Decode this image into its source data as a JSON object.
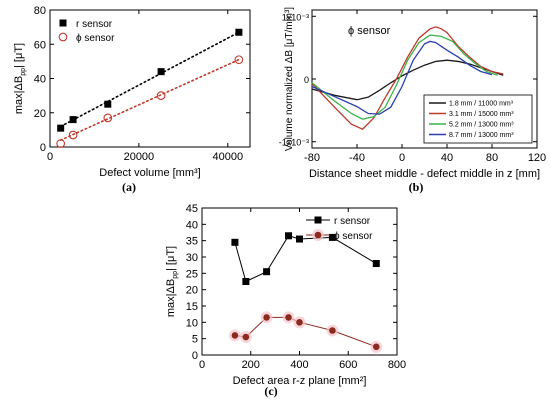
{
  "chart_data": [
    {
      "id": "a",
      "type": "scatter",
      "caption": "(a)",
      "xlabel": "Defect volume [mm³]",
      "ylabel_parts": [
        "max|ΔB",
        "pp",
        "| [μT]"
      ],
      "xlim": [
        0,
        45000
      ],
      "ylim": [
        0,
        80
      ],
      "xticks": [
        {
          "v": 0,
          "t": "0"
        },
        {
          "v": 20000,
          "t": "20000"
        },
        {
          "v": 40000,
          "t": "40000"
        }
      ],
      "yticks": [
        {
          "v": 0,
          "t": "0"
        },
        {
          "v": 20,
          "t": "20"
        },
        {
          "v": 40,
          "t": "40"
        },
        {
          "v": 60,
          "t": "60"
        },
        {
          "v": 80,
          "t": "80"
        }
      ],
      "legend_position": "top-left",
      "series": [
        {
          "name": "r sensor",
          "color": "#000000",
          "marker": "square-filled",
          "x": [
            2400,
            5200,
            13000,
            25000,
            42500
          ],
          "y": [
            11,
            16,
            25,
            44,
            67
          ],
          "fit": [
            [
              2400,
              12
            ],
            [
              42500,
              67
            ]
          ]
        },
        {
          "name": "ϕ sensor",
          "color": "#c03a2b",
          "marker": "circle-open",
          "x": [
            2400,
            5200,
            13000,
            25000,
            42500
          ],
          "y": [
            2,
            7,
            17,
            30,
            51
          ],
          "fit": [
            [
              2400,
              4
            ],
            [
              42500,
              51
            ]
          ]
        }
      ]
    },
    {
      "id": "b",
      "type": "line",
      "caption": "(b)",
      "title": "ϕ sensor",
      "xlabel": "Distance sheet middle - defect middle in z [mm]",
      "ylabel": "Volume normalized ΔB [μT/mm³]",
      "xlim": [
        -80,
        120
      ],
      "ylim": [
        -1.1,
        1.1
      ],
      "xticks": [
        {
          "v": -80,
          "t": "-80"
        },
        {
          "v": -40,
          "t": "-40"
        },
        {
          "v": 0,
          "t": "0"
        },
        {
          "v": 40,
          "t": "40"
        },
        {
          "v": 80,
          "t": "80"
        },
        {
          "v": 120,
          "t": "120"
        }
      ],
      "yticks": [
        {
          "v": 1,
          "t": "1x10⁻³"
        },
        {
          "v": 0,
          "t": "0"
        },
        {
          "v": -1,
          "t": "-1x10⁻³"
        }
      ],
      "legend_position": "bottom-right",
      "series": [
        {
          "name": "1.8 mm / 11000 mm³",
          "color": "#1a1a1a",
          "x": [
            -80,
            -60,
            -40,
            -30,
            -20,
            -10,
            0,
            10,
            20,
            30,
            40,
            50,
            60,
            70,
            80,
            90
          ],
          "y": [
            -0.16,
            -0.26,
            -0.33,
            -0.29,
            -0.18,
            -0.06,
            0.05,
            0.14,
            0.22,
            0.28,
            0.3,
            0.28,
            0.24,
            0.18,
            0.12,
            0.06
          ]
        },
        {
          "name": "3.1 mm / 15000 mm³",
          "color": "#c0392b",
          "x": [
            -80,
            -60,
            -45,
            -35,
            -25,
            -15,
            -5,
            5,
            15,
            25,
            30,
            35,
            40,
            50,
            60,
            70,
            80,
            90
          ],
          "y": [
            -0.07,
            -0.45,
            -0.72,
            -0.8,
            -0.62,
            -0.3,
            0.0,
            0.35,
            0.65,
            0.8,
            0.83,
            0.8,
            0.74,
            0.52,
            0.35,
            0.2,
            0.12,
            0.08
          ]
        },
        {
          "name": "5.2 mm / 13000 mm³",
          "color": "#3cb44b",
          "x": [
            -80,
            -60,
            -45,
            -35,
            -25,
            -15,
            -5,
            5,
            15,
            25,
            35,
            45,
            55,
            65,
            75,
            85
          ],
          "y": [
            -0.06,
            -0.35,
            -0.55,
            -0.64,
            -0.6,
            -0.45,
            -0.1,
            0.3,
            0.58,
            0.7,
            0.68,
            0.6,
            0.4,
            0.25,
            0.12,
            0.06
          ]
        },
        {
          "name": "8.7 mm / 13000 mm³",
          "color": "#2b3fae",
          "x": [
            -80,
            -60,
            -40,
            -30,
            -20,
            -10,
            0,
            10,
            20,
            25,
            30,
            40,
            50,
            60,
            70,
            80
          ],
          "y": [
            -0.12,
            -0.28,
            -0.44,
            -0.55,
            -0.56,
            -0.45,
            -0.12,
            0.3,
            0.56,
            0.6,
            0.58,
            0.46,
            0.35,
            0.22,
            0.12,
            0.07
          ]
        }
      ]
    },
    {
      "id": "c",
      "type": "line",
      "caption": "(c)",
      "xlabel": "Defect area r-z plane [mm²]",
      "ylabel_parts": [
        "max|ΔB",
        "pp",
        "|  [μT]"
      ],
      "xlim": [
        0,
        800
      ],
      "ylim": [
        0,
        45
      ],
      "xticks": [
        {
          "v": 0,
          "t": "0"
        },
        {
          "v": 200,
          "t": "200"
        },
        {
          "v": 400,
          "t": "400"
        },
        {
          "v": 600,
          "t": "600"
        },
        {
          "v": 800,
          "t": "800"
        }
      ],
      "yticks": [
        {
          "v": 0,
          "t": "0"
        },
        {
          "v": 5,
          "t": "5"
        },
        {
          "v": 10,
          "t": "10"
        },
        {
          "v": 15,
          "t": "15"
        },
        {
          "v": 20,
          "t": "20"
        },
        {
          "v": 25,
          "t": "25"
        },
        {
          "v": 30,
          "t": "30"
        },
        {
          "v": 35,
          "t": "35"
        },
        {
          "v": 40,
          "t": "40"
        },
        {
          "v": 45,
          "t": "45"
        }
      ],
      "legend_position": "top-right",
      "series": [
        {
          "name": "r sensor",
          "color": "#000000",
          "marker": "square-filled",
          "x": [
            135,
            180,
            265,
            355,
            400,
            535,
            715
          ],
          "y": [
            34.5,
            22.5,
            25.5,
            36.5,
            35.5,
            36,
            28
          ]
        },
        {
          "name": "ϕ sensor",
          "color": "#8b2a1e",
          "marker": "circle-filled",
          "x": [
            135,
            180,
            265,
            355,
            400,
            535,
            715
          ],
          "y": [
            6,
            5.5,
            11.5,
            11.5,
            10,
            7.5,
            2.5
          ]
        }
      ]
    }
  ]
}
